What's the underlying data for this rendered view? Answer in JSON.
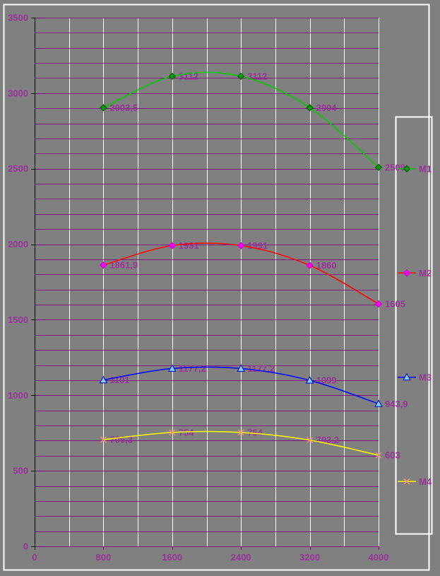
{
  "window": {
    "background": "#808080",
    "frame_border_color": "#ffffff"
  },
  "chart_data": {
    "type": "line",
    "smoothed": true,
    "x": [
      800,
      1600,
      2400,
      3200,
      4000
    ],
    "x_axis": {
      "min": 0,
      "max": 4000,
      "tick_interval": 800,
      "minor_grid_interval": 400,
      "tick_labels": [
        "0",
        "800",
        "1600",
        "2400",
        "3200",
        "4000"
      ],
      "axis_color": "#800080",
      "grid_color": "#ffffff",
      "label_color": "#993399"
    },
    "y_axis": {
      "min": 0,
      "max": 3500,
      "tick_interval": 500,
      "minor_grid_interval": 100,
      "tick_labels": [
        "0",
        "500",
        "1000",
        "1500",
        "2000",
        "2500",
        "3000",
        "3500"
      ],
      "axis_color": "#000000",
      "grid_color": "#800080",
      "label_color": "#993399"
    },
    "data_label_color": "#993399",
    "series": [
      {
        "name": "M1",
        "values": [
          2903.5,
          3112,
          3112,
          2904,
          2509
        ],
        "data_labels": [
          "2903,5",
          "3112",
          "3112",
          "2904",
          "2509"
        ],
        "line_color": "#00cc00",
        "marker": "diamond",
        "marker_fill": "#009900",
        "marker_stroke": "#005500"
      },
      {
        "name": "M2",
        "values": [
          1861.9,
          1991,
          1991,
          1860,
          1605
        ],
        "data_labels": [
          "1861,9",
          "1991",
          "1991",
          "1860",
          "1605"
        ],
        "line_color": "#ff0000",
        "marker": "diamond",
        "marker_fill": "#ff00ff",
        "marker_stroke": "#cc00cc"
      },
      {
        "name": "M3",
        "values": [
          1101,
          1177.2,
          1177.2,
          1099,
          943.9
        ],
        "data_labels": [
          "1101",
          "1177,2",
          "1177,2",
          "1099",
          "943,9"
        ],
        "line_color": "#0000ff",
        "marker": "triangle",
        "marker_fill": "#7fd0ff",
        "marker_stroke": "#0000bb"
      },
      {
        "name": "M4",
        "values": [
          706.3,
          754,
          754,
          703.2,
          603
        ],
        "data_labels": [
          "706,3",
          "754",
          "754",
          "703,2",
          "603"
        ],
        "line_color": "#ffff00",
        "marker": "x",
        "marker_fill": "#ff8c78",
        "marker_stroke": "#ff8c78"
      }
    ],
    "legend": {
      "position": "right",
      "entries": [
        "M1",
        "M2",
        "M3",
        "M4"
      ],
      "border_color": "#ffffff",
      "label_color": "#993399",
      "fill": "none"
    }
  }
}
